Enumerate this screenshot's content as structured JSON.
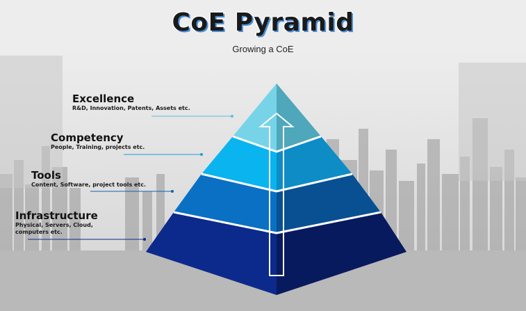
{
  "header": {
    "title": "CoE Pyramid",
    "subtitle": "Growing a CoE"
  },
  "levels": [
    {
      "heading": "Excellence",
      "description": "R&D, Innovation, Patents, Assets etc.",
      "color_left": "#77d4e8",
      "color_right": "#4fa7bb"
    },
    {
      "heading": "Competency",
      "description": "People, Training, projects etc.",
      "color_left": "#0ab4ee",
      "color_right": "#0d8cc6"
    },
    {
      "heading": "Tools",
      "description": "Content, Software, project tools etc.",
      "color_left": "#0a70c4",
      "color_right": "#085092"
    },
    {
      "heading": "Infrastructure",
      "description": "Physical, Servers, Cloud, computers etc.",
      "description_lines": [
        "Physical, Servers, Cloud,",
        "computers etc."
      ],
      "color_left": "#0c2a8c",
      "color_right": "#081a5e"
    }
  ],
  "colors": {
    "connector_lines": [
      "#5bc0de",
      "#1a9fd8",
      "#0c64b0",
      "#0b2a8a"
    ],
    "background_sky": "#e4e4e4",
    "background_ground": "#b9b9b9"
  }
}
